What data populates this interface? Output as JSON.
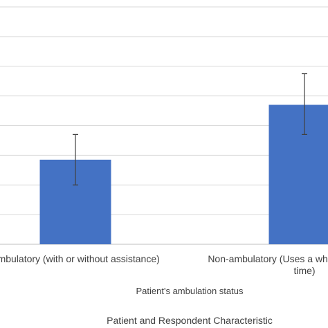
{
  "chart_data": {
    "type": "bar",
    "categories": [
      [
        "Ambulatory (with or without assistance)"
      ],
      [
        "Non-ambulatory (Uses a wheelchair all of the",
        "time)"
      ]
    ],
    "values": [
      2.85,
      4.7
    ],
    "error_low": [
      2.0,
      3.7
    ],
    "error_high": [
      3.7,
      5.75
    ],
    "xlabel": "Patient's ambulation status",
    "ylabel": "",
    "ylim": [
      0,
      8
    ],
    "gridlines": true,
    "bar_color": "#4472c4"
  },
  "footer_title": "Patient and Respondent Characteristic"
}
